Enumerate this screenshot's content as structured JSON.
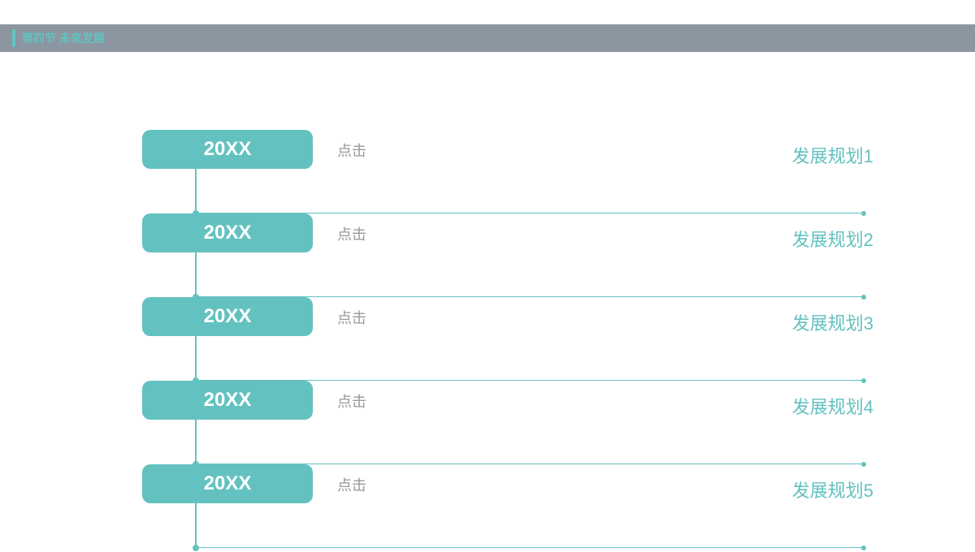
{
  "header": {
    "title": "第四节  未来发展",
    "bar_color": "#8c96a0",
    "accent_color": "#63c2c0",
    "text_color": "#63c2c0"
  },
  "timeline": {
    "accent_color": "#63c2c0",
    "click_text_color": "#999999",
    "plan_text_color": "#63c2c0",
    "rows": [
      {
        "year": "20XX",
        "click": "点击",
        "plan": "发展规划1"
      },
      {
        "year": "20XX",
        "click": "点击",
        "plan": "发展规划2"
      },
      {
        "year": "20XX",
        "click": "点击",
        "plan": "发展规划3"
      },
      {
        "year": "20XX",
        "click": "点击",
        "plan": "发展规划4"
      },
      {
        "year": "20XX",
        "click": "点击",
        "plan": "发展规划5"
      }
    ]
  }
}
